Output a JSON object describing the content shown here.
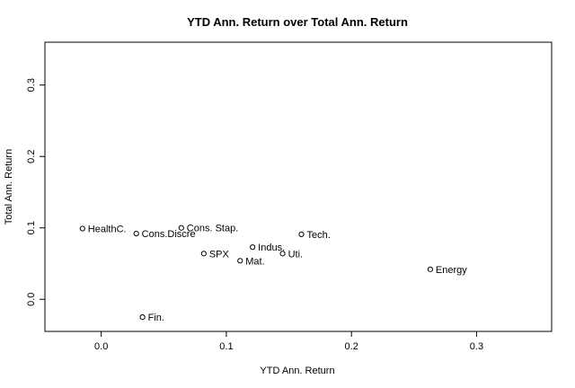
{
  "chart_data": {
    "type": "scatter",
    "title": "YTD Ann. Return over Total Ann. Return",
    "xlabel": "YTD Ann. Return",
    "ylabel": "Total Ann. Return",
    "xlim": [
      -0.045,
      0.36
    ],
    "ylim": [
      -0.045,
      0.36
    ],
    "xticks": [
      0.0,
      0.1,
      0.2,
      0.3
    ],
    "xtick_labels": [
      "0.0",
      "0.1",
      "0.2",
      "0.3"
    ],
    "yticks": [
      0.0,
      0.1,
      0.2,
      0.3
    ],
    "ytick_labels": [
      "0.0",
      "0.1",
      "0.2",
      "0.3"
    ],
    "grid": false,
    "points": [
      {
        "label": "HealthC.",
        "x": -0.015,
        "y": 0.099
      },
      {
        "label": "Cons.Discre",
        "x": 0.028,
        "y": 0.092
      },
      {
        "label": "Cons. Stap.",
        "x": 0.064,
        "y": 0.1
      },
      {
        "label": "SPX",
        "x": 0.082,
        "y": 0.064
      },
      {
        "label": "Mat.",
        "x": 0.111,
        "y": 0.054
      },
      {
        "label": "Indus.",
        "x": 0.121,
        "y": 0.073
      },
      {
        "label": "Uti.",
        "x": 0.145,
        "y": 0.064
      },
      {
        "label": "Tech.",
        "x": 0.16,
        "y": 0.091
      },
      {
        "label": "Energy",
        "x": 0.263,
        "y": 0.042
      },
      {
        "label": "Fin.",
        "x": 0.033,
        "y": -0.025
      }
    ]
  }
}
